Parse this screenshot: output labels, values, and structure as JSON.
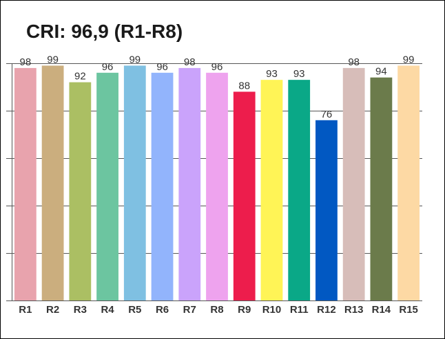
{
  "chart_data": {
    "type": "bar",
    "title": "CRI: 96,9 (R1-R8)",
    "categories": [
      "R1",
      "R2",
      "R3",
      "R4",
      "R5",
      "R6",
      "R7",
      "R8",
      "R9",
      "R10",
      "R11",
      "R12",
      "R13",
      "R14",
      "R15"
    ],
    "values": [
      98,
      99,
      92,
      96,
      99,
      96,
      98,
      96,
      88,
      93,
      93,
      76,
      98,
      94,
      99
    ],
    "colors": [
      "#e8a3ad",
      "#cbae7e",
      "#abbf63",
      "#6cc5a0",
      "#7fc0e2",
      "#92b4fc",
      "#caa3fb",
      "#eea3ee",
      "#ed1d4c",
      "#fff456",
      "#0aa887",
      "#0158c2",
      "#d7bdb9",
      "#6b7b4b",
      "#fdd9a4"
    ],
    "ylim": [
      0,
      100
    ],
    "grid": true,
    "legend": "none",
    "xlabel": "",
    "ylabel": ""
  }
}
